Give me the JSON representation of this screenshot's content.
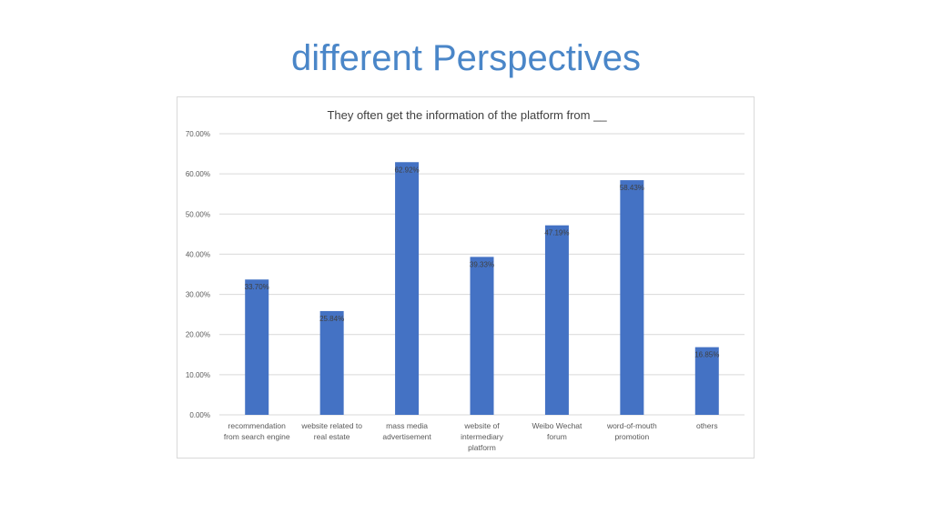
{
  "slide": {
    "title": "different Perspectives"
  },
  "colors": {
    "title": "#4a86c8",
    "bar": "#4472c4",
    "grid": "#d9d9d9"
  },
  "chart_data": {
    "type": "bar",
    "title": "They often get the information of the platform from __",
    "xlabel": "",
    "ylabel": "",
    "ylim": [
      0,
      0.7
    ],
    "y_ticks": [
      0,
      0.1,
      0.2,
      0.3,
      0.4,
      0.5,
      0.6,
      0.7
    ],
    "y_tick_labels": [
      "0.00%",
      "10.00%",
      "20.00%",
      "30.00%",
      "40.00%",
      "50.00%",
      "60.00%",
      "70.00%"
    ],
    "grid": true,
    "legend": "none",
    "categories": [
      [
        "recommendation",
        "from search engine"
      ],
      [
        "website related to",
        "real estate"
      ],
      [
        "mass media",
        "advertisement"
      ],
      [
        "website of",
        "intermediary",
        "platform"
      ],
      [
        "Weibo  Wechat",
        "forum"
      ],
      [
        "word-of-mouth",
        "promotion"
      ],
      [
        "others"
      ]
    ],
    "values": [
      0.337,
      0.2584,
      0.6292,
      0.3933,
      0.4719,
      0.5843,
      0.1685
    ],
    "data_labels": [
      "33.70%",
      "25.84%",
      "62.92%",
      "39.33%",
      "47.19%",
      "58.43%",
      "16.85%"
    ]
  }
}
